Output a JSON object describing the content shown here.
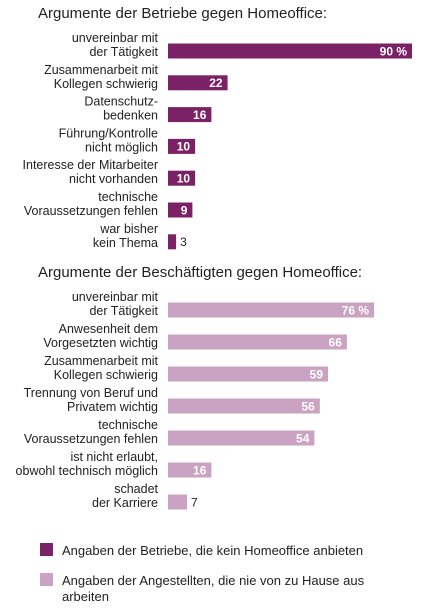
{
  "chart_data": [
    {
      "type": "bar",
      "orientation": "horizontal",
      "title": "Argumente der Betriebe gegen Homeoffice:",
      "categories": [
        [
          "unvereinbar mit",
          "der Tätigkeit"
        ],
        [
          "Zusammenarbeit mit",
          "Kollegen schwierig"
        ],
        [
          "Datenschutz-",
          "bedenken"
        ],
        [
          "Führung/Kontrolle",
          "nicht möglich"
        ],
        [
          "Interesse der Mitarbeiter",
          "nicht vorhanden"
        ],
        [
          "technische",
          "Voraussetzungen fehlen"
        ],
        [
          "war bisher",
          "kein Thema"
        ]
      ],
      "values": [
        90,
        22,
        16,
        10,
        10,
        9,
        3
      ],
      "value_labels": [
        "90 %",
        "22",
        "16",
        "10",
        "10",
        "9",
        "3"
      ],
      "color": "#7b2266",
      "xlim": [
        0,
        90
      ]
    },
    {
      "type": "bar",
      "orientation": "horizontal",
      "title": "Argumente der Beschäftigten gegen Homeoffice:",
      "categories": [
        [
          "unvereinbar mit",
          "der Tätigkeit"
        ],
        [
          "Anwesenheit dem",
          "Vorgesetzten wichtig"
        ],
        [
          "Zusammenarbeit mit",
          "Kollegen schwierig"
        ],
        [
          "Trennung von Beruf und",
          "Privatem wichtig"
        ],
        [
          "technische",
          "Voraussetzungen fehlen"
        ],
        [
          "ist nicht erlaubt,",
          "obwohl technisch möglich"
        ],
        [
          "schadet",
          "der Karriere"
        ]
      ],
      "values": [
        76,
        66,
        59,
        56,
        54,
        16,
        7
      ],
      "value_labels": [
        "76 %",
        "66",
        "59",
        "56",
        "54",
        "16",
        "7"
      ],
      "color": "#c9a3c1",
      "xlim": [
        0,
        90
      ]
    }
  ],
  "legend": [
    {
      "lines": [
        "Angaben der Betriebe, die kein Homeoffice anbieten"
      ],
      "color": "#7b2266"
    },
    {
      "lines": [
        "Angaben der Angestellten, die nie von zu Hause aus",
        "arbeiten"
      ],
      "color": "#c9a3c1"
    }
  ]
}
